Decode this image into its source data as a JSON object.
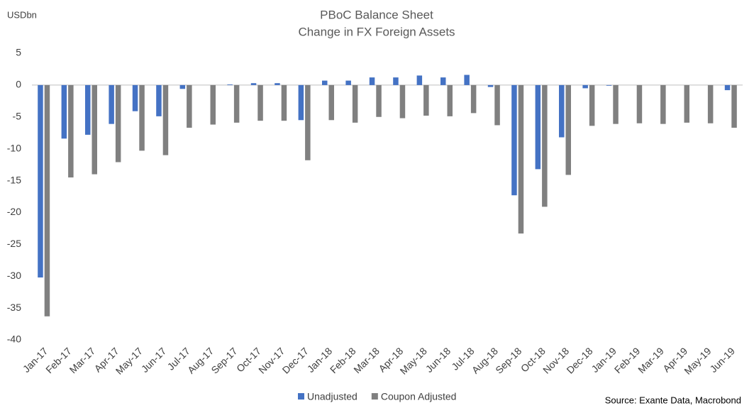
{
  "chart_data": {
    "type": "bar",
    "title": "PBoC Balance Sheet",
    "subtitle": "Change in FX Foreign Assets",
    "y_label": "USDbn",
    "source": "Source: Exante Data, Macrobond",
    "categories": [
      "Jan-17",
      "Feb-17",
      "Mar-17",
      "Apr-17",
      "May-17",
      "Jun-17",
      "Jul-17",
      "Aug-17",
      "Sep-17",
      "Oct-17",
      "Nov-17",
      "Dec-17",
      "Jan-18",
      "Feb-18",
      "Mar-18",
      "Apr-18",
      "May-18",
      "Jun-18",
      "Jul-18",
      "Aug-18",
      "Sep-18",
      "Oct-18",
      "Nov-18",
      "Dec-18",
      "Jan-19",
      "Feb-19",
      "Mar-19",
      "Apr-19",
      "May-19",
      "Jun-19"
    ],
    "series": [
      {
        "name": "Unadjusted",
        "color": "#4472c4",
        "values": [
          -30.2,
          -8.4,
          -7.8,
          -6.1,
          -4.1,
          -4.9,
          -0.6,
          0,
          0.1,
          0.3,
          0.3,
          -5.5,
          0.7,
          0.7,
          1.2,
          1.2,
          1.5,
          1.2,
          1.6,
          -0.3,
          -17.3,
          -13.2,
          -8.2,
          -0.5,
          -0.1,
          0,
          0,
          0,
          0,
          -0.8
        ]
      },
      {
        "name": "Coupon Adjusted",
        "color": "#808080",
        "values": [
          -36.3,
          -14.5,
          -14.0,
          -12.1,
          -10.3,
          -11.0,
          -6.7,
          -6.2,
          -5.9,
          -5.6,
          -5.6,
          -11.8,
          -5.5,
          -5.9,
          -5.0,
          -5.2,
          -4.8,
          -4.9,
          -4.4,
          -6.3,
          -23.3,
          -19.1,
          -14.1,
          -6.4,
          -6.1,
          -6.0,
          -6.1,
          -5.9,
          -6.0,
          -6.7
        ]
      }
    ],
    "ylim": [
      -40,
      5
    ],
    "yticks": [
      5,
      0,
      -5,
      -10,
      -15,
      -20,
      -25,
      -30,
      -35,
      -40
    ],
    "grid": false,
    "legend": "bottom"
  }
}
